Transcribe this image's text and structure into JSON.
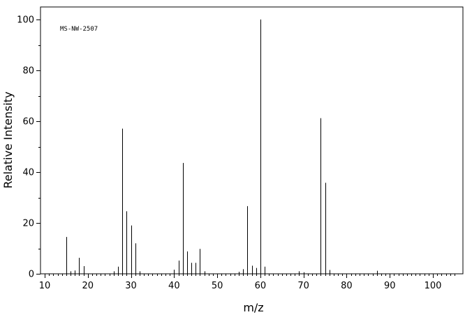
{
  "chart_data": {
    "type": "bar",
    "title": "",
    "annotation": "MS-NW-2507",
    "xlabel": "m/z",
    "ylabel": "Relative Intensity",
    "xlim": [
      10,
      105.5
    ],
    "ylim": [
      0,
      105
    ],
    "x_ticks": [
      10,
      20,
      30,
      40,
      50,
      60,
      70,
      80,
      90,
      100
    ],
    "y_ticks": [
      0,
      20,
      40,
      60,
      80,
      100
    ],
    "grid": false,
    "peaks": [
      {
        "mz": 15,
        "intensity": 14.5
      },
      {
        "mz": 16,
        "intensity": 1.0
      },
      {
        "mz": 17,
        "intensity": 1.3
      },
      {
        "mz": 18,
        "intensity": 6.3
      },
      {
        "mz": 19,
        "intensity": 3.0
      },
      {
        "mz": 26,
        "intensity": 1.0
      },
      {
        "mz": 27,
        "intensity": 2.8
      },
      {
        "mz": 28,
        "intensity": 57.1
      },
      {
        "mz": 29,
        "intensity": 24.6
      },
      {
        "mz": 30,
        "intensity": 19.0
      },
      {
        "mz": 31,
        "intensity": 12.0
      },
      {
        "mz": 32,
        "intensity": 1.0
      },
      {
        "mz": 40,
        "intensity": 1.6
      },
      {
        "mz": 41,
        "intensity": 5.2
      },
      {
        "mz": 42,
        "intensity": 43.6
      },
      {
        "mz": 43,
        "intensity": 8.8
      },
      {
        "mz": 44,
        "intensity": 4.3
      },
      {
        "mz": 45,
        "intensity": 4.3
      },
      {
        "mz": 46,
        "intensity": 9.8
      },
      {
        "mz": 47,
        "intensity": 1.0
      },
      {
        "mz": 55,
        "intensity": 0.8
      },
      {
        "mz": 56,
        "intensity": 1.8
      },
      {
        "mz": 57,
        "intensity": 26.6
      },
      {
        "mz": 58,
        "intensity": 3.2
      },
      {
        "mz": 59,
        "intensity": 2.3
      },
      {
        "mz": 60,
        "intensity": 100.0
      },
      {
        "mz": 61,
        "intensity": 2.8
      },
      {
        "mz": 69,
        "intensity": 1.0
      },
      {
        "mz": 70,
        "intensity": 0.6
      },
      {
        "mz": 74,
        "intensity": 61.2
      },
      {
        "mz": 75,
        "intensity": 35.8
      },
      {
        "mz": 76,
        "intensity": 1.5
      },
      {
        "mz": 87,
        "intensity": 1.2
      }
    ]
  }
}
